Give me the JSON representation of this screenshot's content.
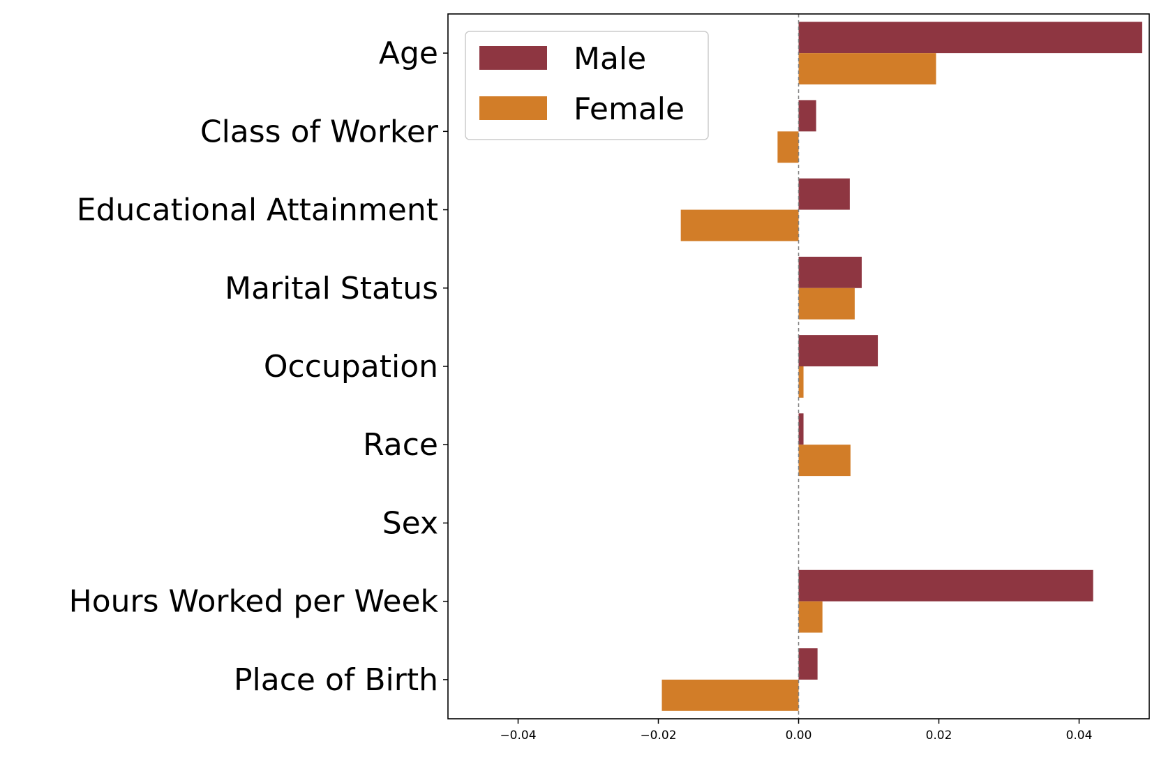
{
  "chart_data": {
    "type": "bar",
    "orientation": "horizontal",
    "title": "",
    "xlabel": "",
    "ylabel": "",
    "categories": [
      "Age",
      "Class of Worker",
      "Educational Attainment",
      "Marital Status",
      "Occupation",
      "Race",
      "Sex",
      "Hours Worked per Week",
      "Place of Birth"
    ],
    "series": [
      {
        "name": "Male",
        "color": "#8e3641",
        "values": [
          0.049,
          0.0025,
          0.0073,
          0.009,
          0.0113,
          0.0007,
          0.0,
          0.042,
          0.0027
        ]
      },
      {
        "name": "Female",
        "color": "#d27d28",
        "values": [
          0.0196,
          -0.003,
          -0.0168,
          0.008,
          0.0007,
          0.0074,
          0.0,
          0.0034,
          -0.0195
        ]
      }
    ],
    "xlim": [
      -0.05,
      0.05
    ],
    "xticks": [
      -0.04,
      -0.02,
      0.0,
      0.02,
      0.04
    ],
    "xtick_labels": [
      "−0.04",
      "−0.02",
      "0.00",
      "0.02",
      "0.04"
    ],
    "reference_line": {
      "x": 0.0,
      "style": "dashed",
      "color": "#808080"
    },
    "grid": false,
    "legend": {
      "position": "top-left",
      "entries": [
        "Male",
        "Female"
      ]
    }
  }
}
